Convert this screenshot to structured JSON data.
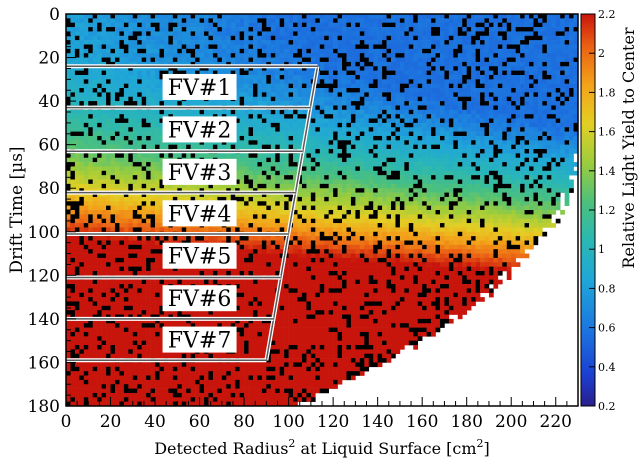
{
  "chart_data": {
    "type": "heatmap",
    "title": "",
    "xlabel": "Detected Radius",
    "xlabel_sup": "2",
    "xlabel_rest": " at Liquid Surface [cm",
    "xlabel_sup2": "2",
    "xlabel_end": "]",
    "ylabel": "Drift Time [µs]",
    "zlabel": "Relative Light Yield to Center",
    "xlim": [
      0,
      230
    ],
    "ylim": [
      180,
      0
    ],
    "zlim": [
      0.2,
      2.2
    ],
    "x_ticks": [
      "0",
      "20",
      "40",
      "60",
      "80",
      "100",
      "120",
      "140",
      "160",
      "180",
      "200",
      "220"
    ],
    "x_tick_values": [
      0,
      20,
      40,
      60,
      80,
      100,
      120,
      140,
      160,
      180,
      200,
      220
    ],
    "y_ticks": [
      "0",
      "20",
      "40",
      "60",
      "80",
      "100",
      "120",
      "140",
      "160",
      "180"
    ],
    "y_tick_values": [
      0,
      20,
      40,
      60,
      80,
      100,
      120,
      140,
      160,
      180
    ],
    "z_ticks": [
      "0.2",
      "0.4",
      "0.6",
      "0.8",
      "1",
      "1.2",
      "1.4",
      "1.6",
      "1.8",
      "2",
      "2.2"
    ],
    "z_tick_values": [
      0.2,
      0.4,
      0.6,
      0.8,
      1.0,
      1.2,
      1.4,
      1.6,
      1.8,
      2.0,
      2.2
    ],
    "fiducial_volumes": [
      {
        "label": "FV#1",
        "t_top": 24,
        "t_bottom": 43
      },
      {
        "label": "FV#2",
        "t_top": 43,
        "t_bottom": 63
      },
      {
        "label": "FV#3",
        "t_top": 63,
        "t_bottom": 82
      },
      {
        "label": "FV#4",
        "t_top": 82,
        "t_bottom": 101
      },
      {
        "label": "FV#5",
        "t_top": 101,
        "t_bottom": 121
      },
      {
        "label": "FV#6",
        "t_top": 121,
        "t_bottom": 140
      },
      {
        "label": "FV#7",
        "t_top": 140,
        "t_bottom": 159
      }
    ],
    "fiducial_boundary": [
      [
        113,
        24
      ],
      [
        90,
        159
      ]
    ],
    "colors": {
      "palette": [
        "#2a1e8c",
        "#1b3fd1",
        "#1c78e0",
        "#20a6d8",
        "#2ab7b4",
        "#4cc07c",
        "#9ccd3c",
        "#e3cf24",
        "#f3a21a",
        "#ea5f14",
        "#c8150c"
      ],
      "outline": "#5a5a5a"
    }
  }
}
